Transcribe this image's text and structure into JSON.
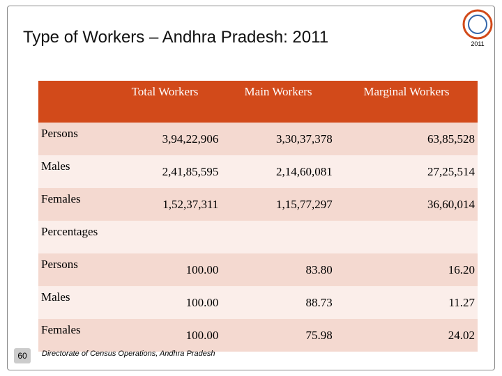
{
  "title": "Type of Workers – Andhra Pradesh: 2011",
  "logo_year": "2011",
  "table": {
    "header": [
      "Total Workers",
      "Main Workers",
      "Marginal Workers"
    ],
    "rows": [
      [
        "Persons",
        "3,94,22,906",
        "3,30,37,378",
        "63,85,528"
      ],
      [
        "Males",
        "2,41,85,595",
        "2,14,60,081",
        "27,25,514"
      ],
      [
        "Females",
        "1,52,37,311",
        "1,15,77,297",
        "36,60,014"
      ]
    ],
    "section": "Percentages",
    "rows2": [
      [
        "Persons",
        "100.00",
        "83.80",
        "16.20"
      ],
      [
        "Males",
        "100.00",
        "88.73",
        "11.27"
      ],
      [
        "Females",
        "100.00",
        "75.98",
        "24.02"
      ]
    ]
  },
  "footer": {
    "page": "60",
    "source": "Directorate of Census Operations, Andhra Pradesh"
  }
}
